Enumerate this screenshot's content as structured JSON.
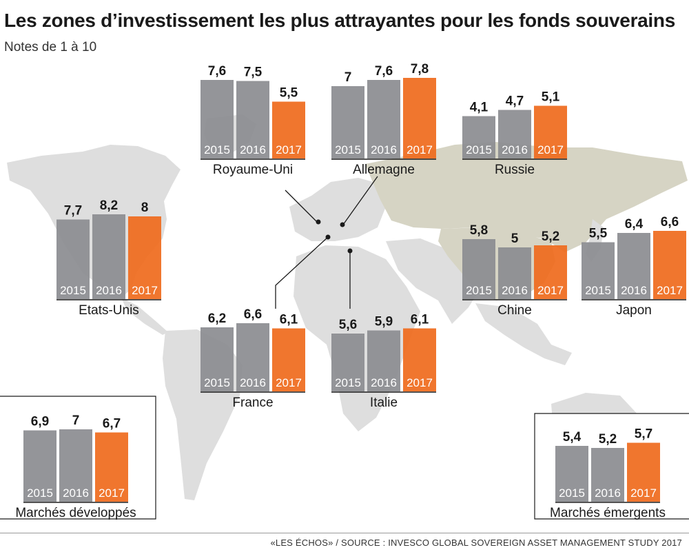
{
  "header": {
    "title": "Les zones d’investissement les plus attrayantes pour les fonds souverains",
    "subtitle": "Notes de 1 à 10"
  },
  "source": "«LES ÉCHOS» / SOURCE : INVESCO GLOBAL SOVEREIGN ASSET MANAGEMENT STUDY 2017",
  "colors": {
    "bar_past": "#8c8d91",
    "bar_current": "#ef6c1e",
    "map_land": "#dedede",
    "map_highlight": "#d6d4c4"
  },
  "chart_data": [
    {
      "type": "bar",
      "title": "Royaume-Uni",
      "categories": [
        "2015",
        "2016",
        "2017"
      ],
      "values": [
        7.6,
        7.5,
        5.5
      ],
      "labels": [
        "7,6",
        "7,5",
        "5,5"
      ]
    },
    {
      "type": "bar",
      "title": "Allemagne",
      "categories": [
        "2015",
        "2016",
        "2017"
      ],
      "values": [
        7,
        7.6,
        7.8
      ],
      "labels": [
        "7",
        "7,6",
        "7,8"
      ]
    },
    {
      "type": "bar",
      "title": "Russie",
      "categories": [
        "2015",
        "2016",
        "2017"
      ],
      "values": [
        4.1,
        4.7,
        5.1
      ],
      "labels": [
        "4,1",
        "4,7",
        "5,1"
      ]
    },
    {
      "type": "bar",
      "title": "Etats-Unis",
      "categories": [
        "2015",
        "2016",
        "2017"
      ],
      "values": [
        7.7,
        8.2,
        8
      ],
      "labels": [
        "7,7",
        "8,2",
        "8"
      ]
    },
    {
      "type": "bar",
      "title": "Chine",
      "categories": [
        "2015",
        "2016",
        "2017"
      ],
      "values": [
        5.8,
        5,
        5.2
      ],
      "labels": [
        "5,8",
        "5",
        "5,2"
      ]
    },
    {
      "type": "bar",
      "title": "Japon",
      "categories": [
        "2015",
        "2016",
        "2017"
      ],
      "values": [
        5.5,
        6.4,
        6.6
      ],
      "labels": [
        "5,5",
        "6,4",
        "6,6"
      ]
    },
    {
      "type": "bar",
      "title": "France",
      "categories": [
        "2015",
        "2016",
        "2017"
      ],
      "values": [
        6.2,
        6.6,
        6.1
      ],
      "labels": [
        "6,2",
        "6,6",
        "6,1"
      ]
    },
    {
      "type": "bar",
      "title": "Italie",
      "categories": [
        "2015",
        "2016",
        "2017"
      ],
      "values": [
        5.6,
        5.9,
        6.1
      ],
      "labels": [
        "5,6",
        "5,9",
        "6,1"
      ]
    },
    {
      "type": "bar",
      "title": "Marchés développés",
      "categories": [
        "2015",
        "2016",
        "2017"
      ],
      "values": [
        6.9,
        7,
        6.7
      ],
      "labels": [
        "6,9",
        "7",
        "6,7"
      ]
    },
    {
      "type": "bar",
      "title": "Marchés émergents",
      "categories": [
        "2015",
        "2016",
        "2017"
      ],
      "values": [
        5.4,
        5.2,
        5.7
      ],
      "labels": [
        "5,4",
        "5,2",
        "5,7"
      ]
    }
  ]
}
